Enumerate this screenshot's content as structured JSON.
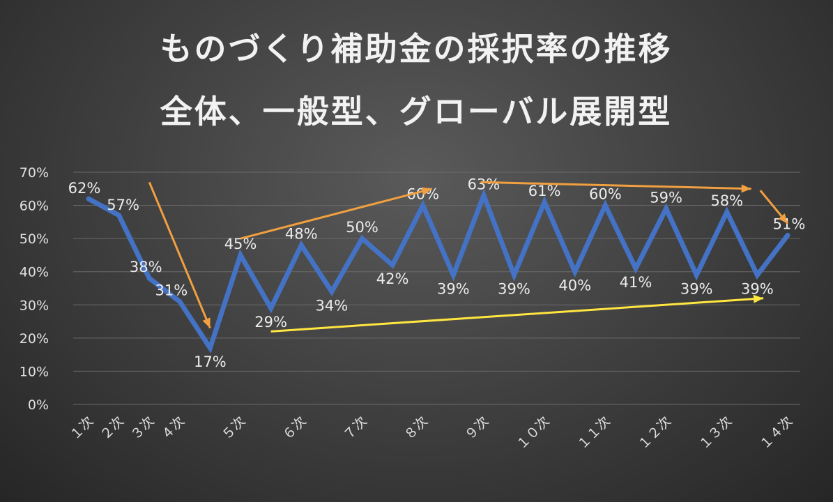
{
  "chart_data": {
    "type": "line",
    "title": "ものづくり補助金の採択率の推移",
    "subtitle": "全体、一般型、グローバル展開型",
    "categories": [
      "１次",
      "２次",
      "３次",
      "４次",
      "",
      "５次",
      "",
      "６次",
      "",
      "７次",
      "",
      "８次",
      "",
      "９次",
      "",
      "１０次",
      "",
      "１１次",
      "",
      "１２次",
      "",
      "１３次",
      "",
      "１４次"
    ],
    "x": [
      1,
      2,
      3,
      4,
      5,
      6,
      7,
      8,
      9,
      10,
      11,
      12,
      13,
      14,
      15,
      16,
      17,
      18,
      19,
      20,
      21,
      22,
      23,
      24
    ],
    "ylim": [
      0,
      70
    ],
    "yticks": [
      0,
      10,
      20,
      30,
      40,
      50,
      60,
      70
    ],
    "ytick_labels": [
      "0%",
      "10%",
      "20%",
      "30%",
      "40%",
      "50%",
      "60%",
      "70%"
    ],
    "series": [
      {
        "values": [
          62,
          57,
          38,
          31,
          17,
          45,
          29,
          48,
          34,
          50,
          42,
          60,
          39,
          63,
          39,
          61,
          40,
          60,
          41,
          59,
          39,
          58,
          39,
          51
        ],
        "labels": [
          "62%",
          "57%",
          "38%",
          "31%",
          "17%",
          "45%",
          "29%",
          "48%",
          "34%",
          "50%",
          "42%",
          "60%",
          "39%",
          "63%",
          "39%",
          "61%",
          "40%",
          "60%",
          "41%",
          "59%",
          "39%",
          "58%",
          "39%",
          "51%"
        ],
        "color": "#4472c4"
      }
    ],
    "annotations": [
      {
        "type": "arrow",
        "color": "#f0a040",
        "from": [
          3.0,
          67
        ],
        "to": [
          5.0,
          23
        ]
      },
      {
        "type": "arrow",
        "color": "#f0a040",
        "from": [
          6.0,
          50
        ],
        "to": [
          12.3,
          65
        ]
      },
      {
        "type": "arrow",
        "color": "#f0a040",
        "from": [
          13.9,
          67
        ],
        "to": [
          22.8,
          65
        ]
      },
      {
        "type": "arrow",
        "color": "#f0a040",
        "from": [
          23.1,
          64.5
        ],
        "to": [
          24.0,
          54.5
        ]
      },
      {
        "type": "arrow",
        "color": "#ffe640",
        "from": [
          7.0,
          22
        ],
        "to": [
          23.2,
          32
        ]
      }
    ],
    "grid": true,
    "legend": "none"
  }
}
